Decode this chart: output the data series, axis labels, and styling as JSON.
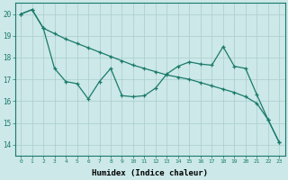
{
  "xlabel": "Humidex (Indice chaleur)",
  "bg_color": "#cce8e8",
  "line_color": "#1a7a6a",
  "grid_color": "#aacccc",
  "x_ticks": [
    0,
    1,
    2,
    3,
    4,
    5,
    6,
    7,
    8,
    9,
    10,
    11,
    12,
    13,
    14,
    15,
    16,
    17,
    18,
    19,
    20,
    21,
    22,
    23
  ],
  "ylim": [
    13.5,
    20.5
  ],
  "xlim": [
    -0.5,
    23.5
  ],
  "yticks": [
    14,
    15,
    16,
    17,
    18,
    19,
    20
  ],
  "series1_x": [
    0,
    1,
    2,
    3,
    4,
    5,
    6,
    7,
    8,
    9,
    10,
    11,
    12,
    13,
    14,
    15,
    16,
    17,
    18,
    19,
    20,
    21,
    22,
    23
  ],
  "series1_y": [
    20.0,
    20.2,
    19.35,
    19.1,
    18.85,
    18.65,
    18.45,
    18.25,
    18.05,
    17.85,
    17.65,
    17.5,
    17.35,
    17.2,
    17.1,
    17.0,
    16.85,
    16.7,
    16.55,
    16.4,
    16.2,
    15.9,
    15.15,
    14.1
  ],
  "series2_x": [
    0,
    1,
    2,
    3,
    4,
    5,
    6,
    7,
    8,
    9,
    10,
    11,
    12,
    13,
    14,
    15,
    16,
    17,
    18,
    19,
    20,
    21,
    22,
    23
  ],
  "series2_y": [
    20.0,
    20.2,
    19.35,
    17.5,
    16.9,
    16.8,
    16.1,
    16.9,
    17.5,
    16.25,
    16.2,
    16.25,
    16.6,
    17.25,
    17.6,
    17.8,
    17.7,
    17.65,
    18.5,
    17.6,
    17.5,
    16.3,
    15.15,
    14.1
  ]
}
